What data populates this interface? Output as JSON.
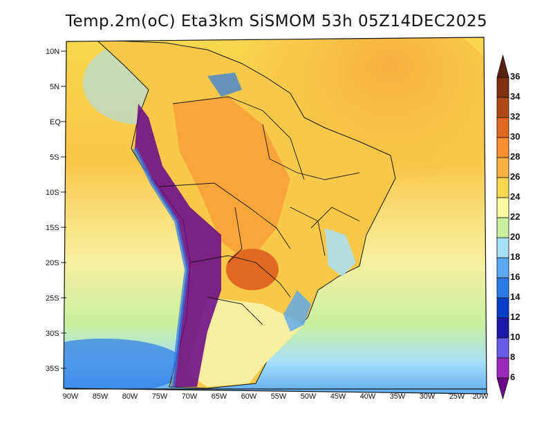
{
  "title": "Temp.2m(oC) Eta3km SiSMOM 53h 05Z14DEC2025",
  "lat_labels": [
    "10N",
    "5N",
    "EQ",
    "5S",
    "10S",
    "15S",
    "20S",
    "25S",
    "30S",
    "35S"
  ],
  "lon_labels": [
    "90W",
    "85W",
    "80W",
    "75W",
    "70W",
    "65W",
    "60W",
    "55W",
    "50W",
    "45W",
    "40W",
    "35W",
    "30W",
    "25W",
    "20W"
  ],
  "colorbar": {
    "labels": [
      "6",
      "8",
      "10",
      "12",
      "14",
      "16",
      "18",
      "20",
      "22",
      "24",
      "26",
      "28",
      "30",
      "32",
      "34",
      "36"
    ],
    "colors": [
      "#6a0a8a",
      "#9a2ab8",
      "#6a5ae8",
      "#1a1aa8",
      "#0a40c8",
      "#2a7ae8",
      "#5aa8f0",
      "#a8e0f8",
      "#c8f0a0",
      "#f8f8a0",
      "#f8d850",
      "#f8b040",
      "#f89030",
      "#e06820",
      "#b04a18",
      "#803010",
      "#5a2010"
    ]
  }
}
